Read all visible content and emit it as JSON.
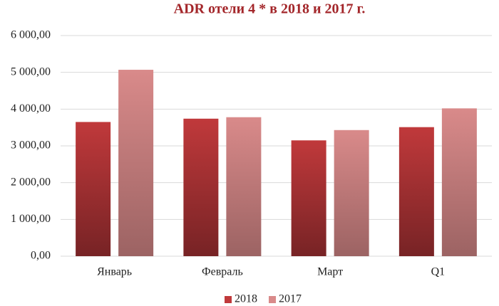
{
  "chart_data": {
    "type": "bar",
    "title": "ADR отели 4 * в 2018 и 2017 г.",
    "categories": [
      "Январь",
      "Февраль",
      "Март",
      "Q1"
    ],
    "series": [
      {
        "name": "2018",
        "color": "#c0393b",
        "values": [
          3650,
          3740,
          3150,
          3510
        ]
      },
      {
        "name": "2017",
        "color": "#d98a8a",
        "values": [
          5070,
          3780,
          3430,
          4020
        ]
      }
    ],
    "ylim": [
      0,
      6000
    ],
    "yticks": [
      {
        "value": 0,
        "label": "0,00"
      },
      {
        "value": 1000,
        "label": "1 000,00"
      },
      {
        "value": 2000,
        "label": "2 000,00"
      },
      {
        "value": 3000,
        "label": "3 000,00"
      },
      {
        "value": 4000,
        "label": "4 000,00"
      },
      {
        "value": 5000,
        "label": "5 000,00"
      },
      {
        "value": 6000,
        "label": "6 000,00"
      }
    ],
    "grid": true,
    "legend": "bottom"
  }
}
